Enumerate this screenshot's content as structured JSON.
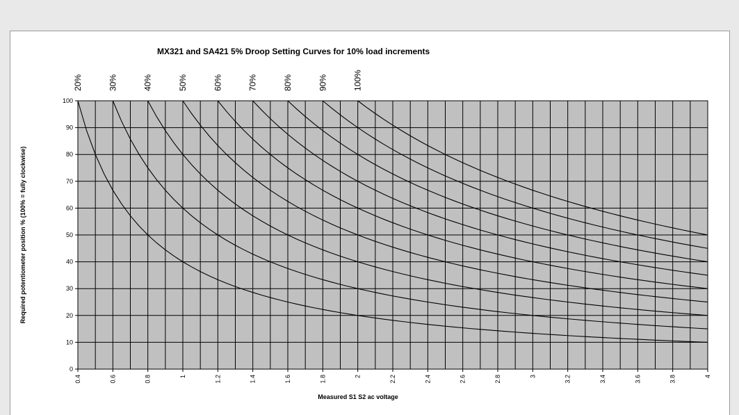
{
  "chart_data": {
    "type": "line",
    "title": "MX321 and SA421 5% Droop Setting Curves for 10% load increments",
    "xlabel": "Measured S1 S2 ac voltage",
    "ylabel": "Required potentiometer position % (100% = fully clockwise)",
    "xlim": [
      0.4,
      4
    ],
    "ylim": [
      0,
      100
    ],
    "x_tick_values": [
      0.4,
      0.6,
      0.8,
      1,
      1.2,
      1.4,
      1.6,
      1.8,
      2,
      2.2,
      2.4,
      2.6,
      2.8,
      3,
      3.2,
      3.4,
      3.6,
      3.8,
      4
    ],
    "x_tick_labels": [
      "0.4",
      "0.6",
      "0.8",
      "1",
      "1.2",
      "1.4",
      "1.6",
      "1.8",
      "2",
      "2.2",
      "2.4",
      "2.6",
      "2.8",
      "3",
      "3.2",
      "3.4",
      "3.6",
      "3.8",
      "4"
    ],
    "x_grid_step": 0.1,
    "y_tick_values": [
      0,
      10,
      20,
      30,
      40,
      50,
      60,
      70,
      80,
      90,
      100
    ],
    "y_tick_labels": [
      "0",
      "10",
      "20",
      "30",
      "40",
      "50",
      "60",
      "70",
      "80",
      "90",
      "100"
    ],
    "grid": true,
    "plot_background": "#c0c0c0",
    "line_color": "#000000",
    "x_sample_step": 0.05,
    "series": [
      {
        "name": "20%",
        "x_start": 0.4,
        "x_end": 4,
        "y_start": 100,
        "y_end": 10
      },
      {
        "name": "30%",
        "x_start": 0.6,
        "x_end": 4,
        "y_start": 100,
        "y_end": 15
      },
      {
        "name": "40%",
        "x_start": 0.8,
        "x_end": 4,
        "y_start": 100,
        "y_end": 20
      },
      {
        "name": "50%",
        "x_start": 1.0,
        "x_end": 4,
        "y_start": 100,
        "y_end": 25
      },
      {
        "name": "60%",
        "x_start": 1.2,
        "x_end": 4,
        "y_start": 100,
        "y_end": 30
      },
      {
        "name": "70%",
        "x_start": 1.4,
        "x_end": 4,
        "y_start": 100,
        "y_end": 35
      },
      {
        "name": "80%",
        "x_start": 1.6,
        "x_end": 4,
        "y_start": 100,
        "y_end": 40
      },
      {
        "name": "90%",
        "x_start": 1.8,
        "x_end": 4,
        "y_start": 100,
        "y_end": 45
      },
      {
        "name": "100%",
        "x_start": 2.0,
        "x_end": 4,
        "y_start": 100,
        "y_end": 50
      }
    ]
  }
}
